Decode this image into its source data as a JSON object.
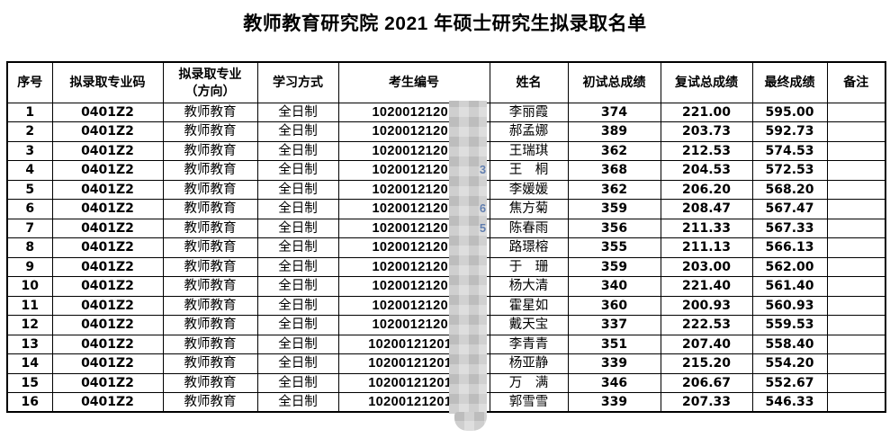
{
  "title": "教师教育研究院 2021 年硕士研究生拟录取名单",
  "table": {
    "headers": [
      "序号",
      "拟录取专业码",
      "拟录取专业\n（方向）",
      "学习方式",
      "考生编号",
      "姓名",
      "初试总成绩",
      "复试总成绩",
      "最终成绩",
      "备注"
    ],
    "redaction_note": "考生编号后段被马赛克遮盖",
    "rows": [
      {
        "no": "1",
        "major_code": "0401Z2",
        "major": "教师教育",
        "study_mode": "全日制",
        "candidate_prefix": "10200121201",
        "candidate_fragment": "",
        "name": "李丽霞",
        "initial_score": "374",
        "retest_score": "221.00",
        "final_score": "595.00",
        "remark": ""
      },
      {
        "no": "2",
        "major_code": "0401Z2",
        "major": "教师教育",
        "study_mode": "全日制",
        "candidate_prefix": "10200121201",
        "candidate_fragment": "",
        "name": "郝孟娜",
        "initial_score": "389",
        "retest_score": "203.73",
        "final_score": "592.73",
        "remark": ""
      },
      {
        "no": "3",
        "major_code": "0401Z2",
        "major": "教师教育",
        "study_mode": "全日制",
        "candidate_prefix": "10200121201",
        "candidate_fragment": "",
        "name": "王瑞琪",
        "initial_score": "362",
        "retest_score": "212.53",
        "final_score": "574.53",
        "remark": ""
      },
      {
        "no": "4",
        "major_code": "0401Z2",
        "major": "教师教育",
        "study_mode": "全日制",
        "candidate_prefix": "10200121201",
        "candidate_fragment": "3",
        "name": "王　桐",
        "initial_score": "368",
        "retest_score": "204.53",
        "final_score": "572.53",
        "remark": ""
      },
      {
        "no": "5",
        "major_code": "0401Z2",
        "major": "教师教育",
        "study_mode": "全日制",
        "candidate_prefix": "10200121201",
        "candidate_fragment": "",
        "name": "李媛媛",
        "initial_score": "362",
        "retest_score": "206.20",
        "final_score": "568.20",
        "remark": ""
      },
      {
        "no": "6",
        "major_code": "0401Z2",
        "major": "教师教育",
        "study_mode": "全日制",
        "candidate_prefix": "10200121201",
        "candidate_fragment": "6",
        "name": "焦方菊",
        "initial_score": "359",
        "retest_score": "208.47",
        "final_score": "567.47",
        "remark": ""
      },
      {
        "no": "7",
        "major_code": "0401Z2",
        "major": "教师教育",
        "study_mode": "全日制",
        "candidate_prefix": "10200121201",
        "candidate_fragment": "5",
        "name": "陈春雨",
        "initial_score": "356",
        "retest_score": "211.33",
        "final_score": "567.33",
        "remark": ""
      },
      {
        "no": "8",
        "major_code": "0401Z2",
        "major": "教师教育",
        "study_mode": "全日制",
        "candidate_prefix": "10200121201",
        "candidate_fragment": "",
        "name": "路璟榕",
        "initial_score": "355",
        "retest_score": "211.13",
        "final_score": "566.13",
        "remark": ""
      },
      {
        "no": "9",
        "major_code": "0401Z2",
        "major": "教师教育",
        "study_mode": "全日制",
        "candidate_prefix": "10200121201",
        "candidate_fragment": "",
        "name": "于　珊",
        "initial_score": "359",
        "retest_score": "203.00",
        "final_score": "562.00",
        "remark": ""
      },
      {
        "no": "10",
        "major_code": "0401Z2",
        "major": "教师教育",
        "study_mode": "全日制",
        "candidate_prefix": "10200121201",
        "candidate_fragment": "",
        "name": "杨大清",
        "initial_score": "340",
        "retest_score": "221.40",
        "final_score": "561.40",
        "remark": ""
      },
      {
        "no": "11",
        "major_code": "0401Z2",
        "major": "教师教育",
        "study_mode": "全日制",
        "candidate_prefix": "10200121201",
        "candidate_fragment": "",
        "name": "霍星如",
        "initial_score": "360",
        "retest_score": "200.93",
        "final_score": "560.93",
        "remark": ""
      },
      {
        "no": "12",
        "major_code": "0401Z2",
        "major": "教师教育",
        "study_mode": "全日制",
        "candidate_prefix": "10200121201",
        "candidate_fragment": "",
        "name": "戴天宝",
        "initial_score": "337",
        "retest_score": "222.53",
        "final_score": "559.53",
        "remark": ""
      },
      {
        "no": "13",
        "major_code": "0401Z2",
        "major": "教师教育",
        "study_mode": "全日制",
        "candidate_prefix": "102001212019",
        "candidate_fragment": "",
        "name": "李青青",
        "initial_score": "351",
        "retest_score": "207.40",
        "final_score": "558.40",
        "remark": ""
      },
      {
        "no": "14",
        "major_code": "0401Z2",
        "major": "教师教育",
        "study_mode": "全日制",
        "candidate_prefix": "102001212019",
        "candidate_fragment": "",
        "name": "杨亚静",
        "initial_score": "339",
        "retest_score": "215.20",
        "final_score": "554.20",
        "remark": ""
      },
      {
        "no": "15",
        "major_code": "0401Z2",
        "major": "教师教育",
        "study_mode": "全日制",
        "candidate_prefix": "102001212019",
        "candidate_fragment": "",
        "name": "万　满",
        "initial_score": "346",
        "retest_score": "206.67",
        "final_score": "552.67",
        "remark": ""
      },
      {
        "no": "16",
        "major_code": "0401Z2",
        "major": "教师教育",
        "study_mode": "全日制",
        "candidate_prefix": "102001212019",
        "candidate_fragment": "",
        "name": "郭雪雪",
        "initial_score": "339",
        "retest_score": "207.33",
        "final_score": "546.33",
        "remark": ""
      }
    ]
  }
}
